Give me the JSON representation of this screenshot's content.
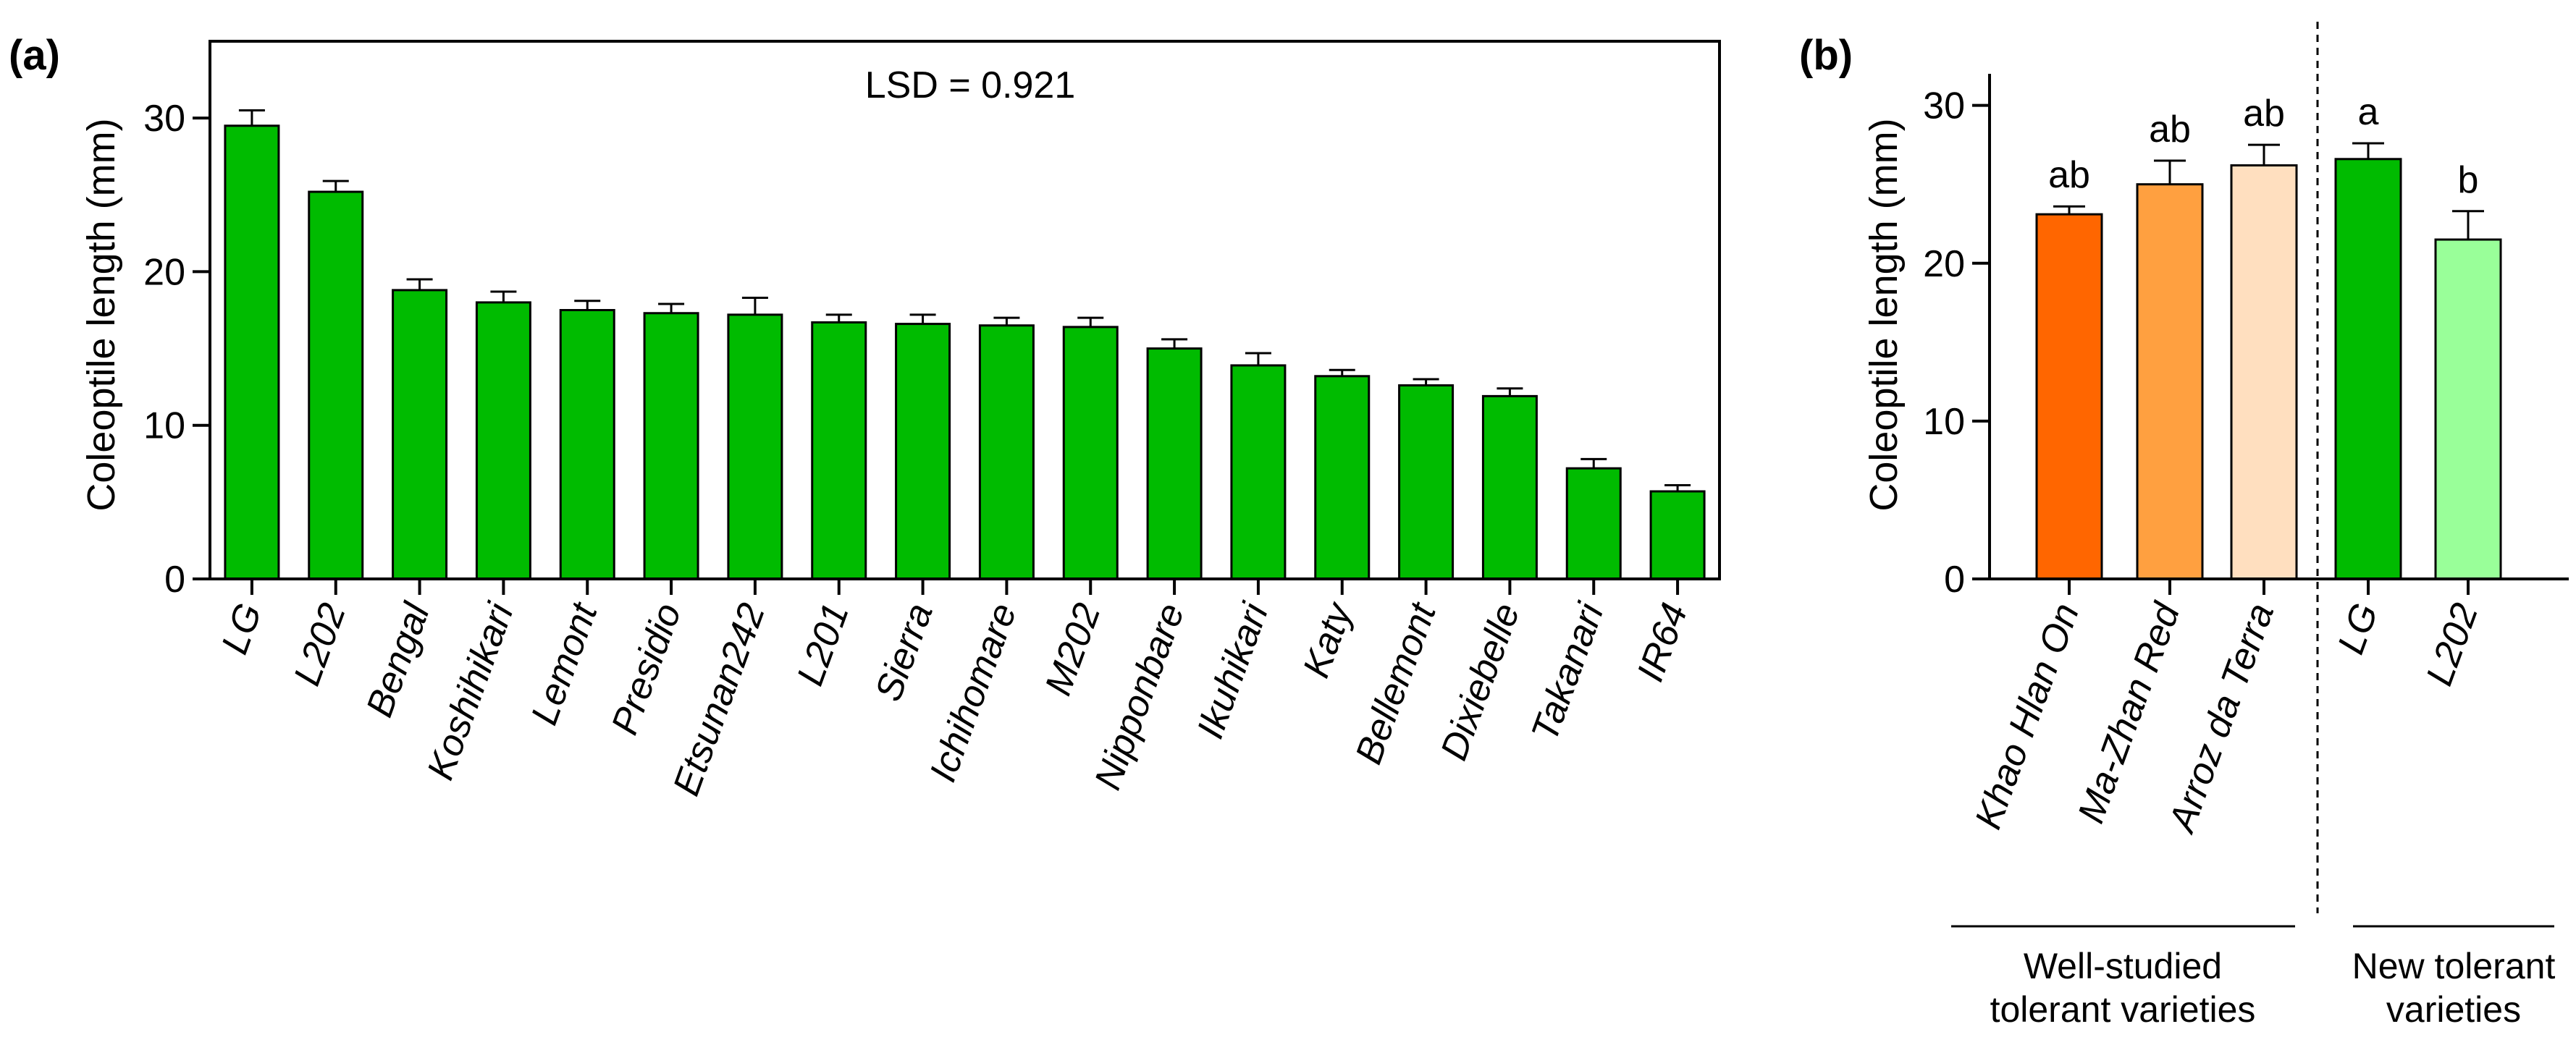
{
  "chart_data": [
    {
      "panel_label": "(a)",
      "type": "bar",
      "ylabel": "Coleoptile length (mm)",
      "ylim": [
        0,
        35
      ],
      "yticks": [
        0,
        10,
        20,
        30
      ],
      "annotation": "LSD = 0.921",
      "grid": false,
      "bar_color": "#00bb00",
      "categories": [
        "LG",
        "L202",
        "Bengal",
        "Koshihikari",
        "Lemont",
        "Presidio",
        "Etsunan242",
        "L201",
        "Sierra",
        "Ichihomare",
        "M202",
        "Nipponbare",
        "Ikuhikari",
        "Katy",
        "Bellemont",
        "Dixiebelle",
        "Takanari",
        "IR64"
      ],
      "values": [
        29.5,
        25.2,
        18.8,
        18.0,
        17.5,
        17.3,
        17.2,
        16.7,
        16.6,
        16.5,
        16.4,
        15.0,
        13.9,
        13.2,
        12.6,
        11.9,
        7.2,
        5.7
      ],
      "errors": [
        1.0,
        0.7,
        0.7,
        0.7,
        0.6,
        0.6,
        1.1,
        0.5,
        0.6,
        0.5,
        0.6,
        0.6,
        0.8,
        0.4,
        0.4,
        0.5,
        0.6,
        0.4
      ]
    },
    {
      "panel_label": "(b)",
      "type": "bar",
      "ylabel": "Coleoptile length (mm)",
      "ylim": [
        0,
        32
      ],
      "yticks": [
        0,
        10,
        20,
        30
      ],
      "grid": false,
      "categories": [
        "Khao Hlan On",
        "Ma-Zhan Red",
        "Arroz da Terra",
        "LG",
        "L202"
      ],
      "values": [
        23.1,
        25.0,
        26.2,
        26.6,
        21.5
      ],
      "errors": [
        0.5,
        1.5,
        1.3,
        1.0,
        1.8
      ],
      "letters": [
        "ab",
        "ab",
        "ab",
        "a",
        "b"
      ],
      "colors": [
        "#ff6600",
        "#ffa040",
        "#ffdfbf",
        "#00bb00",
        "#99ff99"
      ],
      "groups": [
        {
          "label_lines": [
            "Well-studied",
            "tolerant varieties"
          ],
          "members": [
            0,
            1,
            2
          ]
        },
        {
          "label_lines": [
            "New tolerant",
            "varieties"
          ],
          "members": [
            3,
            4
          ]
        }
      ]
    }
  ]
}
